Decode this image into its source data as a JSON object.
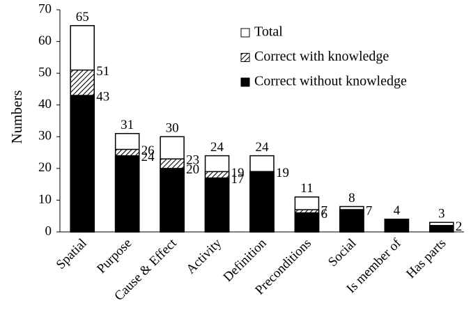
{
  "chart_data": {
    "type": "bar",
    "overlap": true,
    "y_label": "Numbers",
    "categories": [
      "Spatial",
      "Purpose",
      "Cause & Effect",
      "Activity",
      "Definition",
      "Preconditions",
      "Social",
      "Is member of",
      "Has parts"
    ],
    "series": [
      {
        "name": "Total",
        "color": "#ffffff",
        "values": [
          65,
          31,
          30,
          24,
          24,
          11,
          8,
          4,
          3
        ],
        "value_labels": [
          "65",
          "31",
          "30",
          "24",
          "24",
          "11",
          "8",
          "4",
          "3"
        ],
        "label_position": "top"
      },
      {
        "name": "Correct with knowledge",
        "color": "#000000",
        "pattern": "hatch",
        "values": [
          51,
          26,
          23,
          19,
          19,
          7,
          7,
          4,
          2
        ],
        "value_labels": [
          "51",
          "26",
          "23",
          "19",
          null,
          "7",
          null,
          null,
          null
        ],
        "label_position": "right"
      },
      {
        "name": "Correct without knowledge",
        "color": "#000000",
        "values": [
          43,
          24,
          20,
          17,
          19,
          6,
          7,
          4,
          2
        ],
        "value_labels": [
          "43",
          "24",
          "20",
          "17",
          "19",
          "6",
          "7",
          null,
          "2"
        ],
        "label_position": "right"
      }
    ],
    "ylim": [
      0,
      70
    ],
    "yticks": [
      0,
      10,
      20,
      30,
      40,
      50,
      60,
      70
    ],
    "grid": false,
    "legend": "upper right"
  }
}
